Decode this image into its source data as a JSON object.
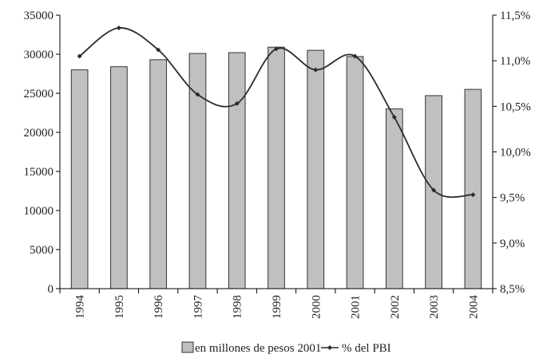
{
  "chart_data": {
    "type": "bar",
    "categories": [
      "1994",
      "1995",
      "1996",
      "1997",
      "1998",
      "1999",
      "2000",
      "2001",
      "2002",
      "2003",
      "2004"
    ],
    "series": [
      {
        "name": "en millones de pesos 2001",
        "type": "bar",
        "axis": "left",
        "values": [
          28000,
          28400,
          29300,
          30100,
          30200,
          30900,
          30500,
          29700,
          23000,
          24700,
          25500
        ]
      },
      {
        "name": "% del PBI",
        "type": "line",
        "axis": "right",
        "values": [
          11.05,
          11.36,
          11.12,
          10.63,
          10.53,
          11.13,
          10.9,
          11.05,
          10.38,
          9.58,
          9.53
        ]
      }
    ],
    "y_left": {
      "min": 0,
      "max": 35000,
      "ticks": [
        "0",
        "5000",
        "10000",
        "15000",
        "20000",
        "25000",
        "30000",
        "35000"
      ]
    },
    "y_right": {
      "min": 8.5,
      "max": 11.5,
      "ticks": [
        "8,5%",
        "9,0%",
        "9,5%",
        "10,0%",
        "10,5%",
        "11,0%",
        "11,5%"
      ]
    },
    "grid": false,
    "legend_position": "bottom",
    "colors": {
      "bar_fill": "#c0c0c0",
      "bar_stroke": "#333333",
      "line": "#2b2b2b",
      "axis": "#000000"
    }
  }
}
